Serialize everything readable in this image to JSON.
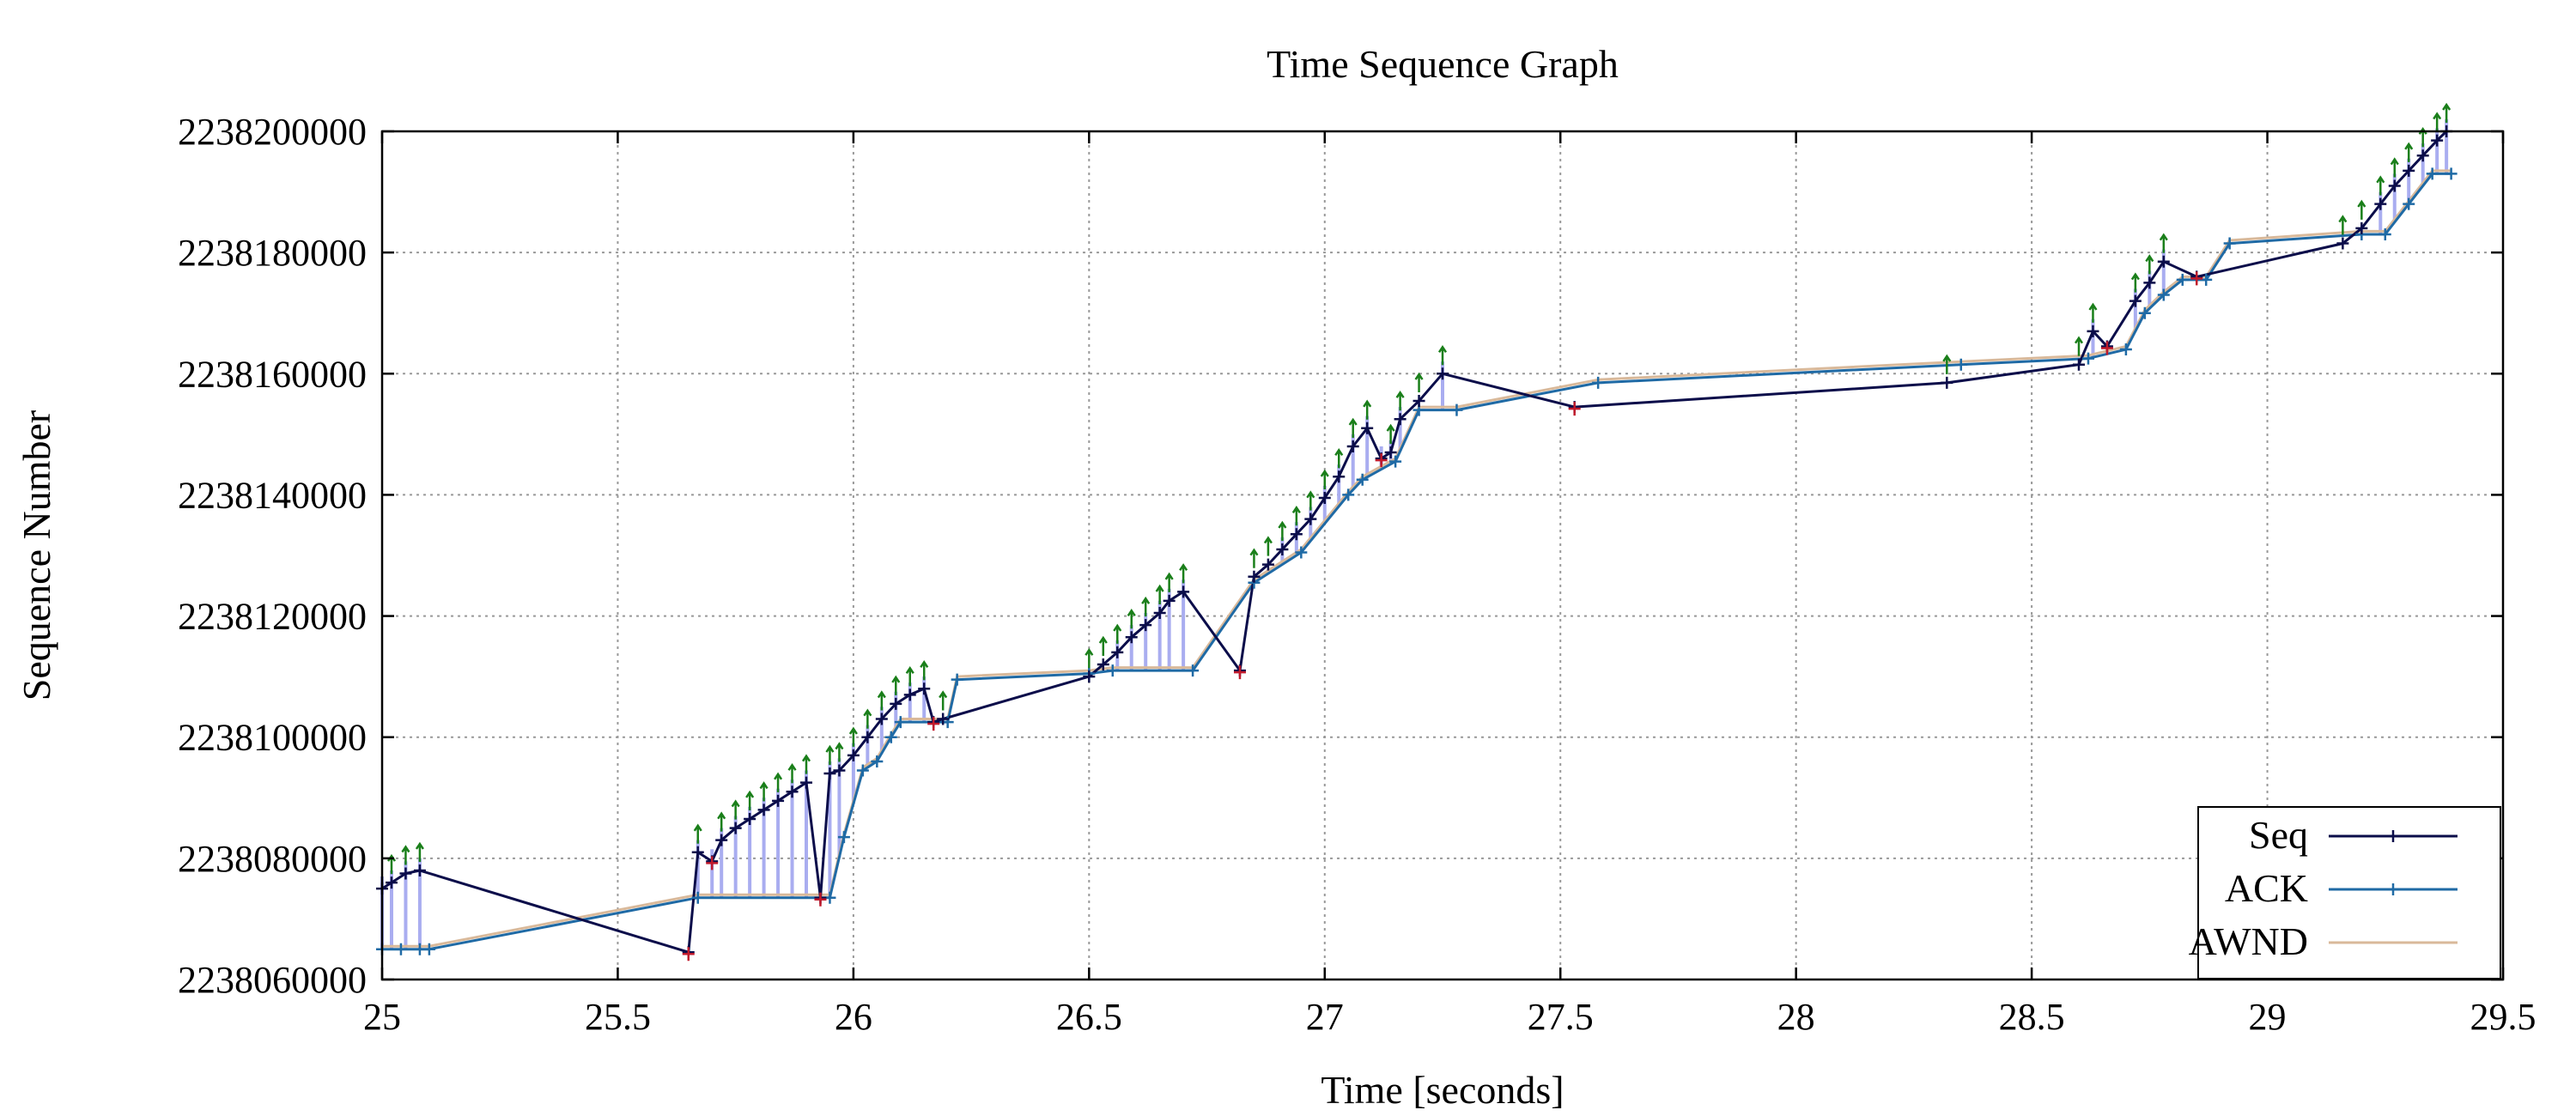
{
  "chart_data": {
    "type": "line",
    "title": "Time Sequence Graph",
    "xlabel": "Time [seconds]",
    "ylabel": "Sequence Number",
    "xlim": [
      25,
      29.5
    ],
    "ylim": [
      2238060000,
      2238200000
    ],
    "x_ticks": [
      25,
      25.5,
      26,
      26.5,
      27,
      27.5,
      28,
      28.5,
      29,
      29.5
    ],
    "x_tick_labels": [
      "25",
      "25.5",
      "26",
      "26.5",
      "27",
      "27.5",
      "28",
      "28.5",
      "29",
      "29.5"
    ],
    "y_ticks": [
      2238060000,
      2238080000,
      2238100000,
      2238120000,
      2238140000,
      2238160000,
      2238180000,
      2238200000
    ],
    "y_tick_labels": [
      "2238060000",
      "2238080000",
      "2238100000",
      "2238120000",
      "2238140000",
      "2238160000",
      "2238180000",
      "2238200000"
    ],
    "grid": true,
    "legend_position": "bottom-right",
    "series": [
      {
        "name": "Seq",
        "color": "#0b0d4a",
        "marker": "+",
        "x": [
          25.0,
          25.02,
          25.05,
          25.08,
          25.65,
          25.67,
          25.7,
          25.72,
          25.75,
          25.78,
          25.81,
          25.84,
          25.87,
          25.9,
          25.93,
          25.95,
          25.97,
          26.0,
          26.03,
          26.06,
          26.09,
          26.12,
          26.15,
          26.17,
          26.19,
          26.5,
          26.53,
          26.56,
          26.59,
          26.62,
          26.65,
          26.67,
          26.7,
          26.82,
          26.85,
          26.88,
          26.91,
          26.94,
          26.97,
          27.0,
          27.03,
          27.06,
          27.09,
          27.12,
          27.14,
          27.16,
          27.2,
          27.25,
          27.53,
          28.32,
          28.6,
          28.63,
          28.66,
          28.72,
          28.75,
          28.78,
          28.85,
          29.16,
          29.2,
          29.24,
          29.27,
          29.3,
          29.33,
          29.36,
          29.38
        ],
        "y": [
          2238075000,
          2238076000,
          2238077500,
          2238078000,
          2238064500,
          2238081000,
          2238079500,
          2238083000,
          2238085000,
          2238086500,
          2238088000,
          2238089500,
          2238091000,
          2238092500,
          2238073500,
          2238094000,
          2238094500,
          2238097000,
          2238100000,
          2238103000,
          2238105500,
          2238107000,
          2238108000,
          2238102500,
          2238103000,
          2238110000,
          2238112000,
          2238114000,
          2238116500,
          2238118500,
          2238120500,
          2238122500,
          2238124000,
          2238111000,
          2238126500,
          2238128500,
          2238131000,
          2238133500,
          2238136000,
          2238139500,
          2238143000,
          2238148000,
          2238151000,
          2238146000,
          2238147000,
          2238152500,
          2238155500,
          2238160000,
          2238154500,
          2238158500,
          2238161500,
          2238167000,
          2238164500,
          2238172000,
          2238175000,
          2238178500,
          2238176000,
          2238181500,
          2238184000,
          2238188000,
          2238191000,
          2238193500,
          2238196000,
          2238198500,
          2238200000
        ]
      },
      {
        "name": "ACK",
        "color": "#1f6aa5",
        "marker": "+",
        "x": [
          25.0,
          25.04,
          25.08,
          25.1,
          25.67,
          25.95,
          25.98,
          26.02,
          26.05,
          26.08,
          26.1,
          26.2,
          26.22,
          26.5,
          26.55,
          26.72,
          26.85,
          26.95,
          27.05,
          27.08,
          27.15,
          27.2,
          27.28,
          27.58,
          28.35,
          28.62,
          28.7,
          28.74,
          28.78,
          28.82,
          28.87,
          28.92,
          29.2,
          29.25,
          29.3,
          29.35,
          29.39
        ],
        "y": [
          2238065000,
          2238065000,
          2238065000,
          2238065000,
          2238073500,
          2238073500,
          2238083500,
          2238094500,
          2238096000,
          2238100000,
          2238102500,
          2238102500,
          2238109500,
          2238110500,
          2238111000,
          2238111000,
          2238125500,
          2238130500,
          2238140000,
          2238142500,
          2238145500,
          2238154000,
          2238154000,
          2238158500,
          2238161500,
          2238162500,
          2238164000,
          2238170000,
          2238173000,
          2238175500,
          2238175500,
          2238181500,
          2238183000,
          2238183000,
          2238188000,
          2238193000,
          2238193000
        ]
      },
      {
        "name": "AWND",
        "color": "#d9b99a",
        "marker": "",
        "x": [
          25.0,
          25.1,
          25.67,
          25.95,
          25.98,
          26.02,
          26.05,
          26.08,
          26.1,
          26.2,
          26.22,
          26.5,
          26.55,
          26.72,
          26.85,
          26.95,
          27.05,
          27.08,
          27.15,
          27.2,
          27.28,
          27.58,
          28.35,
          28.62,
          28.7,
          28.74,
          28.78,
          28.82,
          28.87,
          28.92,
          29.2,
          29.25,
          29.3,
          29.35,
          29.39
        ],
        "y": [
          2238065500,
          2238065500,
          2238074000,
          2238074000,
          2238084000,
          2238095000,
          2238096500,
          2238100500,
          2238103000,
          2238103000,
          2238110000,
          2238111000,
          2238111500,
          2238111500,
          2238126000,
          2238131000,
          2238140500,
          2238143000,
          2238146000,
          2238154500,
          2238154500,
          2238159000,
          2238162000,
          2238163000,
          2238164500,
          2238170500,
          2238173500,
          2238176000,
          2238176000,
          2238182000,
          2238183500,
          2238183500,
          2238188500,
          2238193500,
          2238193500
        ]
      }
    ]
  }
}
